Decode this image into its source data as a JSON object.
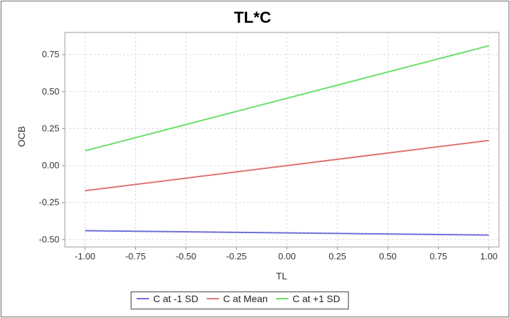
{
  "chart_data": {
    "type": "line",
    "title": "TL*C",
    "xlabel": "TL",
    "ylabel": "OCB",
    "xlim": [
      -1.1,
      1.05
    ],
    "ylim": [
      -0.55,
      0.9
    ],
    "x_ticks": [
      "-1.00",
      "-0.75",
      "-0.50",
      "-0.25",
      "0.00",
      "0.25",
      "0.50",
      "0.75",
      "1.00"
    ],
    "y_ticks": [
      "-0.50",
      "-0.25",
      "0.00",
      "0.25",
      "0.50",
      "0.75"
    ],
    "grid": true,
    "legend_position": "bottom",
    "series": [
      {
        "name": "C at -1 SD",
        "color": "#6b6bd8",
        "x": [
          -1.0,
          1.0
        ],
        "y": [
          -0.44,
          -0.47
        ]
      },
      {
        "name": "C at Mean",
        "color": "#e07070",
        "x": [
          -1.0,
          1.0
        ],
        "y": [
          -0.17,
          0.17
        ]
      },
      {
        "name": "C at +1 SD",
        "color": "#66e066",
        "x": [
          -1.0,
          1.0
        ],
        "y": [
          0.1,
          0.81
        ]
      }
    ]
  }
}
